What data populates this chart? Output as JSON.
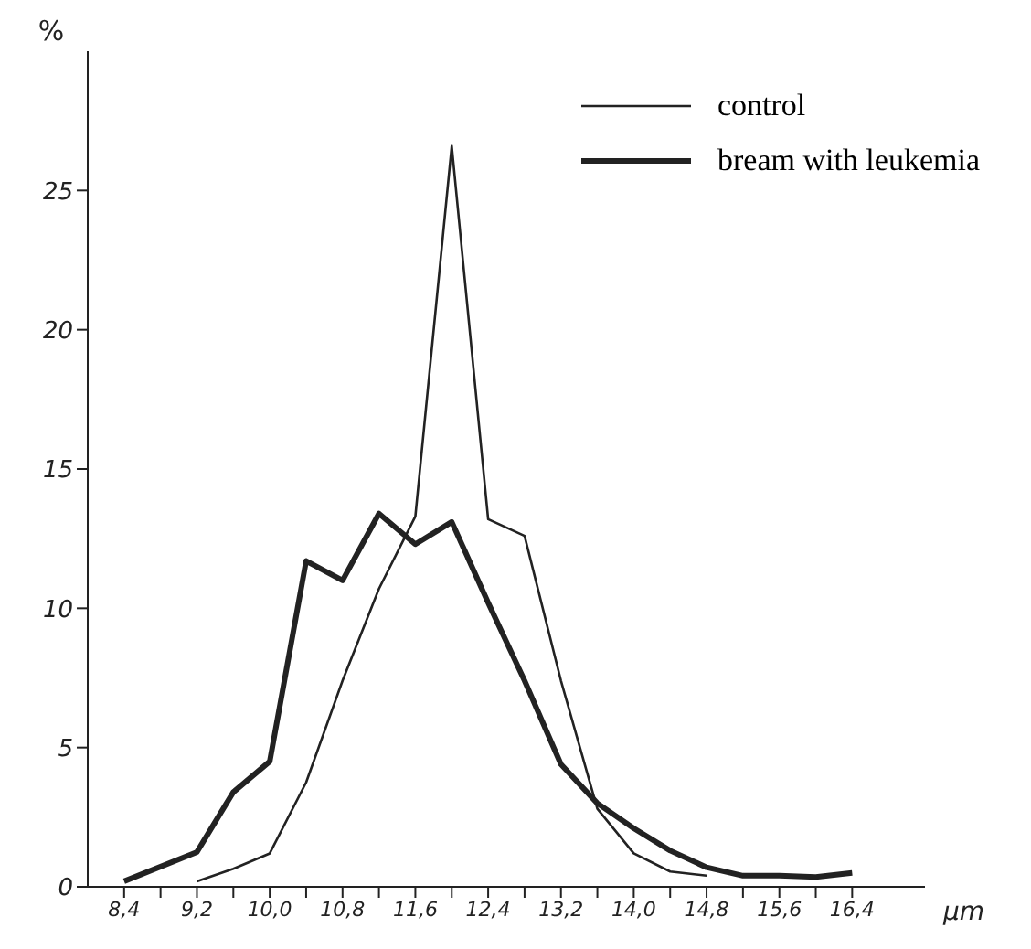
{
  "chart_data": {
    "type": "line",
    "xlabel": "μm",
    "ylabel": "%",
    "xlim": [
      8.0,
      17.2
    ],
    "ylim": [
      0,
      30
    ],
    "xticks": [
      {
        "value": 8.4,
        "label": "8,4"
      },
      {
        "value": 8.8,
        "label": null
      },
      {
        "value": 9.2,
        "label": "9,2"
      },
      {
        "value": 9.6,
        "label": null
      },
      {
        "value": 10.0,
        "label": "10,0"
      },
      {
        "value": 10.4,
        "label": null
      },
      {
        "value": 10.8,
        "label": "10,8"
      },
      {
        "value": 11.2,
        "label": null
      },
      {
        "value": 11.6,
        "label": "11,6"
      },
      {
        "value": 12.0,
        "label": null
      },
      {
        "value": 12.4,
        "label": "12,4"
      },
      {
        "value": 12.8,
        "label": null
      },
      {
        "value": 13.2,
        "label": "13,2"
      },
      {
        "value": 13.6,
        "label": null
      },
      {
        "value": 14.0,
        "label": "14,0"
      },
      {
        "value": 14.4,
        "label": null
      },
      {
        "value": 14.8,
        "label": "14,8"
      },
      {
        "value": 15.2,
        "label": null
      },
      {
        "value": 15.6,
        "label": "15,6"
      },
      {
        "value": 16.0,
        "label": null
      },
      {
        "value": 16.4,
        "label": "16,4"
      }
    ],
    "yticks": [
      0,
      5,
      10,
      15,
      20,
      25
    ],
    "grid": false,
    "legend": "top right",
    "marker": "none",
    "line_style": "solid",
    "series": [
      {
        "name": "control",
        "color": "#222222",
        "x": [
          9.2,
          9.6,
          10.0,
          10.4,
          10.8,
          11.2,
          11.6,
          12.0,
          12.4,
          12.8,
          13.2,
          13.6,
          14.0,
          14.4,
          14.8
        ],
        "values": [
          0.2,
          0.65,
          1.2,
          3.75,
          7.4,
          10.7,
          13.3,
          26.6,
          13.2,
          12.6,
          7.4,
          2.8,
          1.2,
          0.55,
          0.4
        ]
      },
      {
        "name": "bream with leukemia",
        "color": "#222222",
        "x": [
          8.4,
          9.2,
          9.6,
          10.0,
          10.4,
          10.8,
          11.2,
          11.6,
          12.0,
          12.4,
          12.8,
          13.2,
          13.6,
          14.0,
          14.4,
          14.8,
          15.2,
          15.6,
          16.0,
          16.4
        ],
        "values": [
          0.2,
          1.25,
          3.4,
          4.5,
          11.7,
          11.0,
          13.4,
          12.3,
          13.1,
          10.2,
          7.4,
          4.4,
          3.0,
          2.1,
          1.3,
          0.7,
          0.4,
          0.4,
          0.35,
          0.5
        ]
      }
    ]
  }
}
